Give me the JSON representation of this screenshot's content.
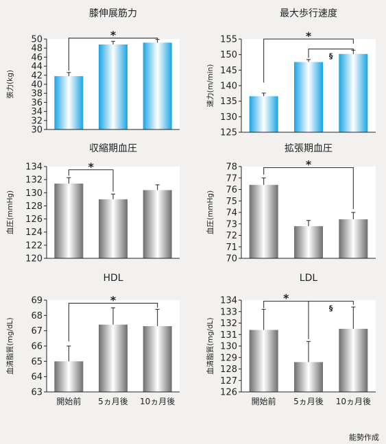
{
  "credit": "能勢作成",
  "colors": {
    "blue_edge": "#1aa4e2",
    "blue_center": "#ffffff",
    "gray_edge": "#6e6e6e",
    "gray_center": "#ffffff"
  },
  "chart_data": [
    {
      "type": "bar",
      "title": "膝伸展筋力",
      "ylabel": "張力(kg)",
      "categories": [
        "開始前",
        "5ヵ月後",
        "10ヵ月後"
      ],
      "show_xlabels": false,
      "values": [
        41.8,
        48.8,
        49.2
      ],
      "errors": [
        0.8,
        0.7,
        0.7
      ],
      "ylim": [
        30,
        50
      ],
      "yticks": [
        30,
        32,
        34,
        36,
        38,
        40,
        42,
        44,
        46,
        48,
        50
      ],
      "color": "blue",
      "annotations": [
        {
          "type": "bracket",
          "from": 0,
          "to": 2,
          "level": 50.2,
          "drop_from": 43.0,
          "drop_to": 50.0,
          "label": "*"
        }
      ]
    },
    {
      "type": "bar",
      "title": "最大歩行速度",
      "ylabel": "速力(m/min)",
      "categories": [
        "開始前",
        "5ヵ月後",
        "10ヵ月後"
      ],
      "show_xlabels": false,
      "values": [
        136.6,
        147.6,
        150.2
      ],
      "errors": [
        1.0,
        0.8,
        1.2
      ],
      "ylim": [
        125,
        155
      ],
      "yticks": [
        125,
        130,
        135,
        140,
        145,
        150,
        155
      ],
      "color": "blue",
      "annotations": [
        {
          "type": "bracket",
          "from": 0,
          "to": 2,
          "level": 155.0,
          "drop_from": 141.0,
          "drop_to": 153.5,
          "label": "*"
        },
        {
          "type": "bracket",
          "from": 1,
          "to": 2,
          "level": 151.8,
          "drop_from": 149.0,
          "drop_to": 151.4,
          "label": "§"
        }
      ]
    },
    {
      "type": "bar",
      "title": "収縮期血圧",
      "ylabel": "血圧(mmHg)",
      "categories": [
        "開始前",
        "5ヵ月後",
        "10ヵ月後"
      ],
      "show_xlabels": false,
      "values": [
        131.4,
        129.0,
        130.4
      ],
      "errors": [
        0.9,
        0.8,
        0.8
      ],
      "ylim": [
        120,
        134
      ],
      "yticks": [
        120,
        122,
        124,
        126,
        128,
        130,
        132,
        134
      ],
      "color": "gray",
      "annotations": [
        {
          "type": "bracket",
          "from": 0,
          "to": 1,
          "level": 133.5,
          "drop_from": 132.6,
          "drop_to": 130.2,
          "label": "*"
        }
      ]
    },
    {
      "type": "bar",
      "title": "拡張期血圧",
      "ylabel": "血圧(mmHg)",
      "categories": [
        "開始前",
        "5ヵ月後",
        "10ヵ月後"
      ],
      "show_xlabels": false,
      "values": [
        76.4,
        72.8,
        73.4
      ],
      "errors": [
        0.6,
        0.5,
        0.6
      ],
      "ylim": [
        70,
        78
      ],
      "yticks": [
        70,
        71,
        72,
        73,
        74,
        75,
        76,
        77,
        78
      ],
      "color": "gray",
      "annotations": [
        {
          "type": "bracket",
          "from": 0,
          "to": 2,
          "level": 77.9,
          "drop_from": 77.3,
          "drop_to": 74.3,
          "label": "*"
        }
      ]
    },
    {
      "type": "bar",
      "title": "HDL",
      "ylabel": "血清脂質(mg/dL)",
      "categories": [
        "開始前",
        "5ヵ月後",
        "10ヵ月後"
      ],
      "show_xlabels": true,
      "values": [
        65.0,
        67.4,
        67.3
      ],
      "errors": [
        1.0,
        1.1,
        1.1
      ],
      "ylim": [
        63,
        69
      ],
      "yticks": [
        63,
        64,
        65,
        66,
        67,
        68,
        69
      ],
      "color": "gray",
      "annotations": [
        {
          "type": "bracket",
          "from": 0,
          "to": 2,
          "level": 68.8,
          "drop_from": 66.3,
          "drop_to": 68.5,
          "label": "*"
        }
      ]
    },
    {
      "type": "bar",
      "title": "LDL",
      "ylabel": "血清脂質(mg/dL)",
      "categories": [
        "開始前",
        "5ヵ月後",
        "10ヵ月後"
      ],
      "show_xlabels": true,
      "values": [
        131.4,
        128.6,
        131.5
      ],
      "errors": [
        1.8,
        1.8,
        1.9
      ],
      "ylim": [
        126,
        134
      ],
      "yticks": [
        126,
        127,
        128,
        129,
        130,
        131,
        132,
        133,
        134
      ],
      "color": "gray",
      "annotations": [
        {
          "type": "bracket",
          "from": 0,
          "to": 1,
          "level": 133.9,
          "drop_from": 133.3,
          "drop_to": 130.6,
          "label": "*"
        },
        {
          "type": "bracket",
          "from": 1,
          "to": 2,
          "level": 133.9,
          "drop_from": 130.6,
          "drop_to": 133.6,
          "label": "§"
        }
      ]
    }
  ]
}
